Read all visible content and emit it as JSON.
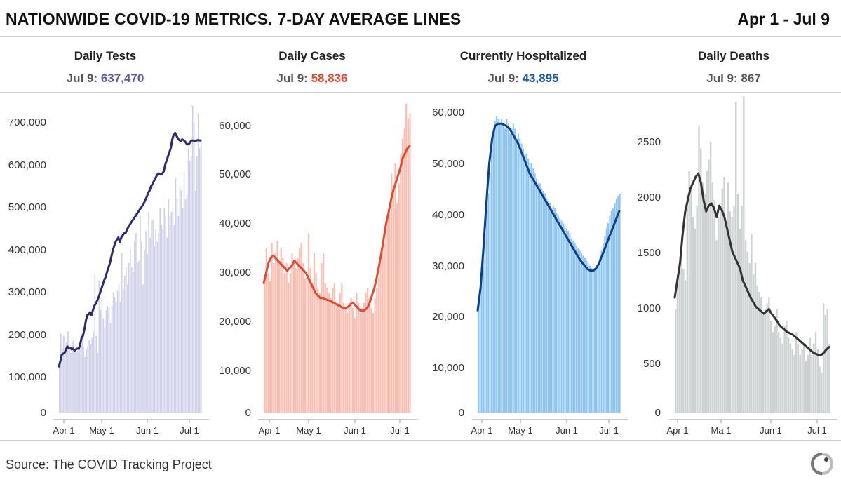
{
  "header": {
    "title": "NATIONWIDE COVID-19 METRICS. 7-DAY AVERAGE LINES",
    "date_range": "Apr 1 - Jul 9"
  },
  "metrics": [
    {
      "name": "Daily Tests",
      "date_label": "Jul 9:",
      "value": "637,470",
      "color": "#585ba5"
    },
    {
      "name": "Daily Cases",
      "date_label": "Jul 9:",
      "value": "58,836",
      "color": "#e04a2f"
    },
    {
      "name": "Currently Hospitalized",
      "date_label": "Jul 9:",
      "value": "43,895",
      "color": "#1a5aa0"
    },
    {
      "name": "Daily Deaths",
      "date_label": "Jul 9:",
      "value": "867",
      "color": "#555555"
    }
  ],
  "chart_data": [
    {
      "type": "bar",
      "title": "Daily Tests",
      "x_ticks": [
        "Apr 1",
        "May 1",
        "Jun 1",
        "Jul 1"
      ],
      "y_ticks": [
        "0",
        "100,000",
        "200,000",
        "300,000",
        "400,000",
        "500,000",
        "600,000",
        "700,000"
      ],
      "ylim": [
        0,
        700000
      ],
      "bar_color": "#d0d0e8",
      "line_color": "#2e2a6e",
      "bars": [
        110000,
        185000,
        150000,
        180000,
        160000,
        165000,
        190000,
        150000,
        140000,
        165000,
        170000,
        150000,
        140000,
        145000,
        150000,
        170000,
        185000,
        155000,
        130000,
        148000,
        155000,
        170000,
        160000,
        175000,
        190000,
        325000,
        180000,
        140000,
        310000,
        240000,
        270000,
        220000,
        200000,
        240000,
        250000,
        245000,
        210000,
        250000,
        280000,
        270000,
        260000,
        285000,
        300000,
        260000,
        375000,
        290000,
        320000,
        340000,
        300000,
        350000,
        380000,
        340000,
        330000,
        400000,
        420000,
        350000,
        355000,
        460000,
        400000,
        300000,
        380000,
        425000,
        370000,
        470000,
        410000,
        450000,
        450000,
        390000,
        430000,
        400000,
        420000,
        480000,
        440000,
        430000,
        480000,
        460000,
        410000,
        500000,
        460000,
        470000,
        480000,
        440000,
        550000,
        500000,
        460000,
        530000,
        520000,
        480000,
        560000,
        500000,
        510000,
        620000,
        590000,
        600000,
        720000,
        680000,
        520000,
        600000,
        700000,
        620000,
        640000
      ],
      "avg": [
        108000,
        120000,
        135000,
        138000,
        140000,
        148000,
        155000,
        150000,
        152000,
        148000,
        150000,
        145000,
        148000,
        150000,
        149000,
        160000,
        175000,
        180000,
        195000,
        215000,
        228000,
        230000,
        235000,
        228000,
        240000,
        250000,
        255000,
        262000,
        270000,
        280000,
        290000,
        300000,
        310000,
        318000,
        330000,
        340000,
        350000,
        365000,
        380000,
        390000,
        400000,
        405000,
        410000,
        400000,
        410000,
        415000,
        420000,
        420000,
        428000,
        435000,
        440000,
        445000,
        450000,
        455000,
        460000,
        465000,
        470000,
        475000,
        480000,
        485000,
        490000,
        498000,
        505000,
        515000,
        520000,
        530000,
        535000,
        542000,
        548000,
        555000,
        560000,
        560000,
        558000,
        560000,
        565000,
        580000,
        590000,
        600000,
        610000,
        620000,
        640000,
        650000,
        655000,
        648000,
        642000,
        638000,
        636000,
        640000,
        638000,
        635000,
        630000,
        628000,
        630000,
        635000,
        637470,
        637000,
        636000,
        637000,
        638000,
        637470,
        637470
      ]
    },
    {
      "type": "bar",
      "title": "Daily Cases",
      "x_ticks": [
        "Apr 1",
        "May 1",
        "Jun 1",
        "Jul 1"
      ],
      "y_ticks": [
        "0",
        "10,000",
        "20,000",
        "30,000",
        "40,000",
        "50,000",
        "60,000"
      ],
      "ylim": [
        0,
        60000
      ],
      "bar_color": "#f8bfb2",
      "line_color": "#e04a2f",
      "bars": [
        26000,
        33000,
        28000,
        26500,
        34000,
        30000,
        32000,
        34500,
        30000,
        33000,
        31000,
        28000,
        30000,
        26000,
        28000,
        32000,
        30000,
        29000,
        31000,
        33000,
        34000,
        30000,
        27000,
        28000,
        36000,
        29000,
        26000,
        32000,
        28000,
        25000,
        24000,
        30000,
        32000,
        26000,
        25000,
        24000,
        23000,
        25000,
        26000,
        22000,
        22000,
        24000,
        26000,
        22000,
        21000,
        20000,
        22000,
        23000,
        21000,
        19000,
        24000,
        22000,
        20000,
        21000,
        22000,
        24000,
        25000,
        23000,
        21000,
        20000,
        23000,
        25000,
        27000,
        30000,
        32000,
        34000,
        37000,
        39000,
        40000,
        48000,
        45000,
        50000,
        42000,
        46000,
        52000,
        55000,
        57000,
        62000,
        59000,
        60000
      ],
      "avg": [
        26000,
        28000,
        30000,
        31000,
        31500,
        31000,
        30500,
        30000,
        29500,
        29000,
        28500,
        29000,
        29500,
        30500,
        30000,
        29500,
        29000,
        28500,
        28000,
        27000,
        26000,
        25000,
        24000,
        23500,
        23000,
        23000,
        22800,
        22600,
        22500,
        22200,
        22000,
        21700,
        21500,
        21200,
        21000,
        21000,
        21300,
        21800,
        22000,
        21500,
        21000,
        20500,
        20400,
        20600,
        21000,
        22000,
        23500,
        25000,
        27000,
        29500,
        32000,
        35000,
        38000,
        40000,
        42500,
        44500,
        46000,
        47500,
        49000,
        51000,
        52000,
        53000,
        53500
      ]
    },
    {
      "type": "bar",
      "title": "Currently Hospitalized",
      "x_ticks": [
        "Apr 1",
        "May 1",
        "Jun 1",
        "Jul 1"
      ],
      "y_ticks": [
        "0",
        "10,000",
        "20,000",
        "30,000",
        "40,000",
        "50,000",
        "60,000"
      ],
      "ylim": [
        0,
        60000
      ],
      "bar_color": "#8ec4f0",
      "line_color": "#0d3e8a",
      "bars": [
        21000,
        24000,
        28000,
        32000,
        36000,
        40000,
        44000,
        48000,
        52000,
        56000,
        58500,
        59500,
        59000,
        58000,
        59000,
        58000,
        57000,
        59000,
        58000,
        56000,
        57000,
        58000,
        57000,
        55000,
        56000,
        55000,
        54000,
        53000,
        52000,
        52000,
        51000,
        50000,
        50000,
        49000,
        48000,
        47000,
        46000,
        46000,
        45000,
        44500,
        44000,
        43000,
        42500,
        42000,
        41000,
        41500,
        41000,
        40000,
        39500,
        39000,
        38500,
        38000,
        37500,
        37000,
        36500,
        36000,
        35000,
        34500,
        34000,
        33500,
        33000,
        32500,
        32000,
        31500,
        31000,
        30500,
        30000,
        29500,
        29000,
        28800,
        29000,
        29500,
        30000,
        31000,
        32500,
        34000,
        35500,
        37000,
        38000,
        39500,
        40500,
        41000,
        42000,
        43000,
        43500,
        43895
      ],
      "avg": [
        20500,
        25000,
        33000,
        42000,
        50000,
        55000,
        57500,
        58000,
        58000,
        57800,
        57500,
        57000,
        56000,
        55000,
        54000,
        52500,
        51000,
        49500,
        48000,
        47000,
        46000,
        45000,
        44000,
        43000,
        42000,
        41000,
        40000,
        39000,
        38000,
        37000,
        36000,
        35000,
        34000,
        33000,
        32000,
        31000,
        30200,
        29500,
        28800,
        28500,
        28500,
        29000,
        30000,
        31500,
        33000,
        34500,
        36000,
        37500,
        39000,
        40500
      ]
    },
    {
      "type": "bar",
      "title": "Daily Deaths",
      "x_ticks": [
        "Apr 1",
        "Ma 1",
        "Jun 1",
        "Jul 1"
      ],
      "y_ticks": [
        "0",
        "500",
        "1000",
        "1500",
        "2000",
        "2500"
      ],
      "ylim": [
        0,
        2600
      ],
      "bar_color": "#cdd1d1",
      "line_color": "#333333",
      "bars": [
        900,
        1100,
        1300,
        1400,
        1250,
        1150,
        1900,
        2100,
        1950,
        1700,
        1600,
        1800,
        2500,
        2300,
        2000,
        1900,
        2100,
        2200,
        2350,
        2000,
        1850,
        1500,
        1700,
        1800,
        1950,
        2050,
        1650,
        2000,
        1750,
        1700,
        1800,
        2700,
        1900,
        1600,
        1800,
        2750,
        1500,
        1400,
        1300,
        1550,
        1200,
        1300,
        1100,
        1050,
        1000,
        850,
        900,
        950,
        1000,
        800,
        700,
        750,
        900,
        700,
        650,
        600,
        750,
        800,
        650,
        600,
        550,
        500,
        700,
        600,
        500,
        550,
        600,
        450,
        500,
        650,
        500,
        600,
        700,
        550,
        400,
        350,
        950,
        850,
        900,
        600
      ],
      "avg": [
        1000,
        1150,
        1300,
        1550,
        1750,
        1850,
        1950,
        2000,
        2050,
        2080,
        2000,
        1850,
        1750,
        1800,
        1820,
        1780,
        1700,
        1800,
        1760,
        1700,
        1600,
        1500,
        1400,
        1350,
        1300,
        1250,
        1150,
        1100,
        1050,
        1000,
        960,
        920,
        900,
        880,
        860,
        880,
        900,
        860,
        830,
        800,
        760,
        740,
        720,
        700,
        690,
        680,
        660,
        640,
        620,
        600,
        580,
        560,
        540,
        520,
        510,
        500,
        500,
        520,
        550,
        570
      ]
    }
  ],
  "footer": {
    "source": "Source: The COVID Tracking Project",
    "logo": "covid-tracking-logo-icon"
  }
}
